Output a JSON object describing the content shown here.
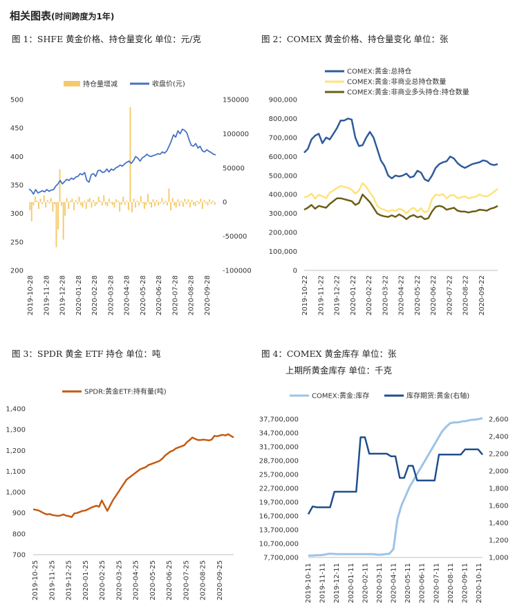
{
  "header": {
    "title": "相关图表",
    "subtitle": "(时间跨度为1年)"
  },
  "figures": [
    {
      "title": "图 1：SHFE 黄金价格、持仓量变化   单位：元/克"
    },
    {
      "title": "图 2：COMEX 黄金价格、持仓量变化   单位：张"
    },
    {
      "title": "图 3：SPDR 黄金 ETF 持仓    单位：吨"
    },
    {
      "title": "图 4：COMEX 黄金库存    单位：张",
      "title2": "上期所黄金库存    单位：千克"
    }
  ],
  "chart_data": [
    {
      "type": "bar+line",
      "legend_position": "top",
      "x_ticks": [
        "2019-10-28",
        "2019-11-28",
        "2019-12-28",
        "2020-01-28",
        "2020-02-28",
        "2020-03-28",
        "2020-04-28",
        "2020-05-28",
        "2020-06-28",
        "2020-07-28",
        "2020-08-28",
        "2020-09-28"
      ],
      "left_axis": {
        "ticks": [
          "500",
          "450",
          "400",
          "350",
          "300",
          "250",
          "200"
        ],
        "ylim": [
          200,
          500
        ]
      },
      "right_axis": {
        "ticks": [
          "150000",
          "100000",
          "50000",
          "0",
          "-50000",
          "-100000"
        ],
        "ylim": [
          -100000,
          150000
        ]
      },
      "series": [
        {
          "name": "持仓量增减",
          "type": "bar",
          "axis": "right",
          "color": "#f5c969",
          "values": [
            -12000,
            -28000,
            -5000,
            8000,
            2000,
            -10000,
            5000,
            -3000,
            10000,
            -8000,
            3000,
            -2000,
            6000,
            -14000,
            -3000,
            -66000,
            -40000,
            48000,
            -5000,
            -55000,
            -20000,
            6000,
            -10000,
            2000,
            5000,
            -12000,
            3000,
            -3000,
            8000,
            -5000,
            -8000,
            2000,
            -10000,
            4000,
            6000,
            -8000,
            3000,
            -6000,
            -3000,
            8000,
            2000,
            -5000,
            10000,
            -4000,
            -6000,
            5000,
            -2000,
            -4000,
            -8000,
            4000,
            2000,
            -14000,
            -4000,
            8000,
            -4000,
            2000,
            -12000,
            139000,
            -15000,
            5000,
            -8000,
            2000,
            -5000,
            9000,
            -2000,
            -10000,
            -4000,
            12000,
            -3000,
            -8000,
            4000,
            -6000,
            3000,
            -5000,
            -2000,
            6000,
            -3000,
            2000,
            -5000,
            20000,
            -12000,
            6000,
            -5000,
            -8000,
            4000,
            -6000,
            2000,
            -7000,
            5000,
            -3000,
            4000,
            -8000,
            3000,
            -4000,
            -6000,
            2000,
            -3000,
            5000,
            -10000,
            3000,
            -2000,
            -5000,
            4000,
            -3000,
            2000,
            -4000
          ]
        },
        {
          "name": "收盘价(元)",
          "type": "line",
          "axis": "left",
          "color": "#4472c4",
          "values": [
            343,
            340,
            334,
            342,
            336,
            338,
            340,
            338,
            342,
            339,
            341,
            342,
            348,
            352,
            358,
            352,
            356,
            360,
            358,
            362,
            360,
            364,
            365,
            370,
            368,
            372,
            358,
            355,
            368,
            370,
            365,
            375,
            376,
            372,
            373,
            378,
            373,
            378,
            376,
            380,
            382,
            385,
            383,
            387,
            390,
            392,
            388,
            393,
            400,
            397,
            392,
            398,
            400,
            404,
            401,
            400,
            402,
            403,
            405,
            404,
            408,
            406,
            410,
            418,
            427,
            438,
            434,
            445,
            440,
            448,
            446,
            442,
            430,
            420,
            418,
            423,
            415,
            418,
            410,
            408,
            412,
            409,
            407,
            404,
            403
          ]
        }
      ]
    },
    {
      "type": "line",
      "legend_position": "top-left",
      "x_ticks": [
        "2019-10-22",
        "2019-11-22",
        "2019-12-22",
        "2020-01-22",
        "2020-02-22",
        "2020-03-22",
        "2020-04-22",
        "2020-05-22",
        "2020-06-22",
        "2020-07-22",
        "2020-08-22",
        "2020-09-22"
      ],
      "y_axis": {
        "ticks": [
          "900,000",
          "800,000",
          "700,000",
          "600,000",
          "500,000",
          "400,000",
          "300,000",
          "200,000",
          "100,000",
          "0"
        ],
        "ylim": [
          0,
          900000
        ]
      },
      "series": [
        {
          "name": "COMEX:黄金:总持仓",
          "color": "#2e5a9c",
          "values": [
            620000,
            640000,
            690000,
            710000,
            720000,
            670000,
            700000,
            690000,
            720000,
            750000,
            790000,
            790000,
            800000,
            795000,
            700000,
            655000,
            660000,
            700000,
            730000,
            700000,
            640000,
            580000,
            550000,
            500000,
            485000,
            500000,
            495000,
            500000,
            510000,
            490000,
            495000,
            525000,
            515000,
            480000,
            470000,
            500000,
            540000,
            560000,
            570000,
            575000,
            600000,
            590000,
            565000,
            550000,
            540000,
            550000,
            560000,
            565000,
            570000,
            580000,
            575000,
            560000,
            555000,
            560000
          ]
        },
        {
          "name": "COMEX:黄金:非商业总持仓数量",
          "color": "#ffe27a",
          "values": [
            385000,
            390000,
            405000,
            378000,
            398000,
            392000,
            380000,
            410000,
            420000,
            435000,
            445000,
            440000,
            435000,
            425000,
            405000,
            420000,
            460000,
            440000,
            410000,
            385000,
            340000,
            325000,
            320000,
            310000,
            318000,
            312000,
            325000,
            318000,
            300000,
            320000,
            330000,
            310000,
            328000,
            305000,
            315000,
            375000,
            400000,
            395000,
            402000,
            380000,
            395000,
            398000,
            380000,
            385000,
            390000,
            380000,
            385000,
            388000,
            400000,
            392000,
            390000,
            400000,
            415000,
            430000
          ]
        },
        {
          "name": "COMEX:黄金:非商业多头持仓:持仓数量",
          "color": "#6b5e14",
          "values": [
            320000,
            330000,
            345000,
            325000,
            340000,
            335000,
            330000,
            350000,
            365000,
            380000,
            380000,
            375000,
            370000,
            365000,
            345000,
            355000,
            400000,
            380000,
            360000,
            330000,
            300000,
            290000,
            285000,
            282000,
            290000,
            282000,
            295000,
            285000,
            270000,
            285000,
            292000,
            280000,
            285000,
            270000,
            275000,
            310000,
            335000,
            340000,
            335000,
            320000,
            325000,
            330000,
            315000,
            310000,
            310000,
            305000,
            310000,
            312000,
            320000,
            318000,
            315000,
            325000,
            330000,
            340000
          ]
        }
      ]
    },
    {
      "type": "line",
      "legend_position": "top",
      "x_ticks": [
        "2019-10-25",
        "2019-11-25",
        "2019-12-25",
        "2020-01-25",
        "2020-02-25",
        "2020-03-25",
        "2020-04-25",
        "2020-05-25",
        "2020-06-25",
        "2020-07-25",
        "2020-08-25",
        "2020-09-25"
      ],
      "y_axis": {
        "ticks": [
          "1,400",
          "1,300",
          "1,200",
          "1,100",
          "1,000",
          "900",
          "800",
          "700"
        ],
        "ylim": [
          700,
          1400
        ]
      },
      "series": [
        {
          "name": "SPDR:黄金ETF:持有量(吨)",
          "color": "#c55a11",
          "values": [
            918,
            915,
            912,
            905,
            898,
            893,
            895,
            890,
            888,
            886,
            888,
            893,
            887,
            885,
            880,
            898,
            900,
            905,
            910,
            912,
            918,
            925,
            930,
            935,
            930,
            960,
            935,
            910,
            935,
            960,
            980,
            1000,
            1020,
            1040,
            1060,
            1070,
            1080,
            1090,
            1100,
            1110,
            1115,
            1120,
            1130,
            1135,
            1140,
            1145,
            1150,
            1160,
            1175,
            1185,
            1195,
            1200,
            1210,
            1215,
            1220,
            1225,
            1240,
            1250,
            1262,
            1255,
            1250,
            1250,
            1252,
            1250,
            1248,
            1252,
            1270,
            1268,
            1272,
            1275,
            1272,
            1278,
            1270,
            1262
          ]
        }
      ]
    },
    {
      "type": "line",
      "legend_position": "top",
      "x_ticks": [
        "2019-10-11",
        "2019-11-11",
        "2019-12-11",
        "2020-01-11",
        "2020-02-11",
        "2020-03-11",
        "2020-04-11",
        "2020-05-11",
        "2020-06-11",
        "2020-07-11",
        "2020-08-11",
        "2020-09-11",
        "2020-10-11"
      ],
      "left_axis": {
        "ticks": [
          "37,700,000",
          "34,700,000",
          "31,700,000",
          "28,700,000",
          "25,700,000",
          "22,700,000",
          "19,700,000",
          "16,700,000",
          "13,700,000",
          "10,700,000",
          "7,700,000"
        ],
        "ylim": [
          7700000,
          37700000
        ]
      },
      "right_axis": {
        "ticks": [
          "2,600",
          "2,400",
          "2,200",
          "2,000",
          "1,800",
          "1,600",
          "1,400",
          "1,200",
          "1,000"
        ],
        "ylim": [
          1000,
          2600
        ]
      },
      "series": [
        {
          "name": "COMEX:黄金:库存",
          "axis": "left",
          "color": "#9dc3e6",
          "values": [
            8100000,
            8100000,
            8200000,
            8200000,
            8300000,
            8500000,
            8500000,
            8400000,
            8400000,
            8400000,
            8400000,
            8400000,
            8400000,
            8400000,
            8400000,
            8400000,
            8400000,
            8300000,
            8300000,
            8400000,
            8500000,
            9500000,
            16000000,
            19000000,
            21000000,
            23000000,
            24500000,
            26000000,
            27500000,
            29000000,
            30500000,
            32000000,
            33500000,
            35000000,
            36000000,
            36800000,
            37000000,
            37000000,
            37200000,
            37300000,
            37500000,
            37600000,
            37700000,
            37900000
          ]
        },
        {
          "name": "库存期货:黄金(右轴)",
          "axis": "right",
          "color": "#1f4e8c",
          "values": [
            1500,
            1590,
            1580,
            1580,
            1580,
            1580,
            1760,
            1760,
            1760,
            1760,
            1760,
            1760,
            2390,
            2390,
            2200,
            2200,
            2200,
            2200,
            2200,
            2170,
            2170,
            1920,
            1920,
            2060,
            2060,
            1890,
            1890,
            1890,
            1890,
            1890,
            2190,
            2190,
            2190,
            2190,
            2190,
            2190,
            2250,
            2250,
            2250,
            2250,
            2190
          ]
        }
      ]
    }
  ]
}
